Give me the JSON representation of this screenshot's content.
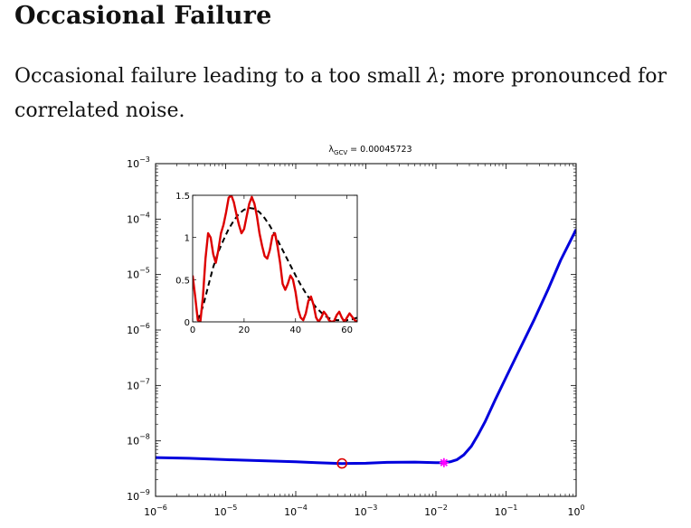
{
  "slide": {
    "title": "Occasional Failure",
    "body": {
      "before": "Occasional failure leading to a too small ",
      "symbol": "λ",
      "after": "; more pronounced for correlated noise."
    }
  },
  "chart_data": [
    {
      "type": "line",
      "title": "λGCV = 0.00045723",
      "title_parts": {
        "symbol": "λ",
        "subscript": "GCV",
        "value": "= 0.00045723"
      },
      "xscale": "log",
      "yscale": "log",
      "xlim": [
        1e-06,
        1
      ],
      "ylim": [
        1e-09,
        0.001
      ],
      "x_ticks": [
        {
          "value": 1e-06,
          "base": "10",
          "exp": "−6"
        },
        {
          "value": 1e-05,
          "base": "10",
          "exp": "−5"
        },
        {
          "value": 0.0001,
          "base": "10",
          "exp": "−4"
        },
        {
          "value": 0.001,
          "base": "10",
          "exp": "−3"
        },
        {
          "value": 0.01,
          "base": "10",
          "exp": "−2"
        },
        {
          "value": 0.1,
          "base": "10",
          "exp": "−1"
        },
        {
          "value": 1,
          "base": "10",
          "exp": "0"
        }
      ],
      "y_ticks": [
        {
          "value": 1e-09,
          "base": "10",
          "exp": "−9"
        },
        {
          "value": 1e-08,
          "base": "10",
          "exp": "−8"
        },
        {
          "value": 1e-07,
          "base": "10",
          "exp": "−7"
        },
        {
          "value": 1e-06,
          "base": "10",
          "exp": "−6"
        },
        {
          "value": 1e-05,
          "base": "10",
          "exp": "−5"
        },
        {
          "value": 0.0001,
          "base": "10",
          "exp": "−4"
        },
        {
          "value": 0.001,
          "base": "10",
          "exp": "−3"
        }
      ],
      "series": [
        {
          "color": "#0000dd",
          "x": [
            1e-06,
            3e-06,
            1e-05,
            3e-05,
            0.0001,
            0.0002,
            0.00046,
            0.001,
            0.002,
            0.005,
            0.01,
            0.013,
            0.016,
            0.02,
            0.025,
            0.032,
            0.04,
            0.05,
            0.07,
            0.1,
            0.15,
            0.25,
            0.4,
            0.6,
            1
          ],
          "y": [
            5e-09,
            4.85e-09,
            4.6e-09,
            4.4e-09,
            4.2e-09,
            4.05e-09,
            3.9e-09,
            3.95e-09,
            4.1e-09,
            4.15e-09,
            4.05e-09,
            4.05e-09,
            4.2e-09,
            4.6e-09,
            5.6e-09,
            8e-09,
            1.3e-08,
            2.2e-08,
            5.5e-08,
            1.4e-07,
            4e-07,
            1.5e-06,
            5.5e-06,
            1.8e-05,
            6.5e-05
          ]
        }
      ],
      "markers": [
        {
          "name": "circle",
          "x": 0.00045723,
          "y": 3.92e-09,
          "color": "#dd0000"
        },
        {
          "name": "star",
          "x": 0.013,
          "y": 4.05e-09,
          "color": "#ff00ff"
        }
      ]
    },
    {
      "type": "line",
      "xlim": [
        0,
        64
      ],
      "ylim": [
        0,
        1.5
      ],
      "x_ticks": [
        0,
        20,
        40,
        60
      ],
      "y_ticks": [
        0,
        0.5,
        1,
        1.5
      ],
      "x_tick_labels": [
        "0",
        "20",
        "40",
        "60"
      ],
      "y_tick_labels": [
        "0",
        "0.5",
        "1",
        "1.5"
      ],
      "series": [
        {
          "color": "#000000",
          "dash": true,
          "x": [
            2,
            4,
            6,
            8,
            10,
            12,
            14,
            16,
            18,
            20,
            22,
            24,
            26,
            28,
            30,
            32,
            34,
            36,
            38,
            40,
            42,
            44,
            46,
            48,
            50,
            52,
            54,
            56,
            58,
            60,
            62,
            64
          ],
          "y": [
            0.02,
            0.18,
            0.42,
            0.65,
            0.83,
            0.97,
            1.1,
            1.2,
            1.28,
            1.33,
            1.35,
            1.34,
            1.3,
            1.23,
            1.14,
            1.03,
            0.91,
            0.79,
            0.67,
            0.55,
            0.44,
            0.34,
            0.25,
            0.17,
            0.11,
            0.06,
            0.03,
            0.02,
            0.02,
            0.02,
            0.03,
            0.05
          ]
        },
        {
          "color": "#dd0000",
          "dash": false,
          "x": [
            0,
            1,
            2,
            3,
            4,
            5,
            6,
            7,
            8,
            9,
            10,
            11,
            12,
            13,
            14,
            15,
            16,
            17,
            18,
            19,
            20,
            21,
            22,
            23,
            24,
            25,
            26,
            27,
            28,
            29,
            30,
            31,
            32,
            33,
            34,
            35,
            36,
            37,
            38,
            39,
            40,
            41,
            42,
            43,
            44,
            45,
            46,
            47,
            48,
            49,
            50,
            51,
            52,
            53,
            54,
            55,
            56,
            57,
            58,
            59,
            60,
            61,
            62,
            63,
            64
          ],
          "y": [
            0.55,
            0.3,
            0.02,
            0.0,
            0.3,
            0.75,
            1.05,
            1.0,
            0.8,
            0.7,
            0.85,
            1.05,
            1.15,
            1.3,
            1.47,
            1.5,
            1.42,
            1.28,
            1.15,
            1.05,
            1.1,
            1.25,
            1.4,
            1.48,
            1.4,
            1.25,
            1.05,
            0.9,
            0.78,
            0.75,
            0.85,
            1.02,
            1.05,
            0.9,
            0.7,
            0.45,
            0.38,
            0.45,
            0.55,
            0.5,
            0.35,
            0.15,
            0.05,
            0.02,
            0.1,
            0.25,
            0.3,
            0.2,
            0.05,
            0.0,
            0.05,
            0.12,
            0.08,
            0.02,
            0.0,
            0.01,
            0.08,
            0.12,
            0.05,
            0.0,
            0.05,
            0.1,
            0.06,
            0.02,
            0.0
          ]
        }
      ]
    }
  ]
}
